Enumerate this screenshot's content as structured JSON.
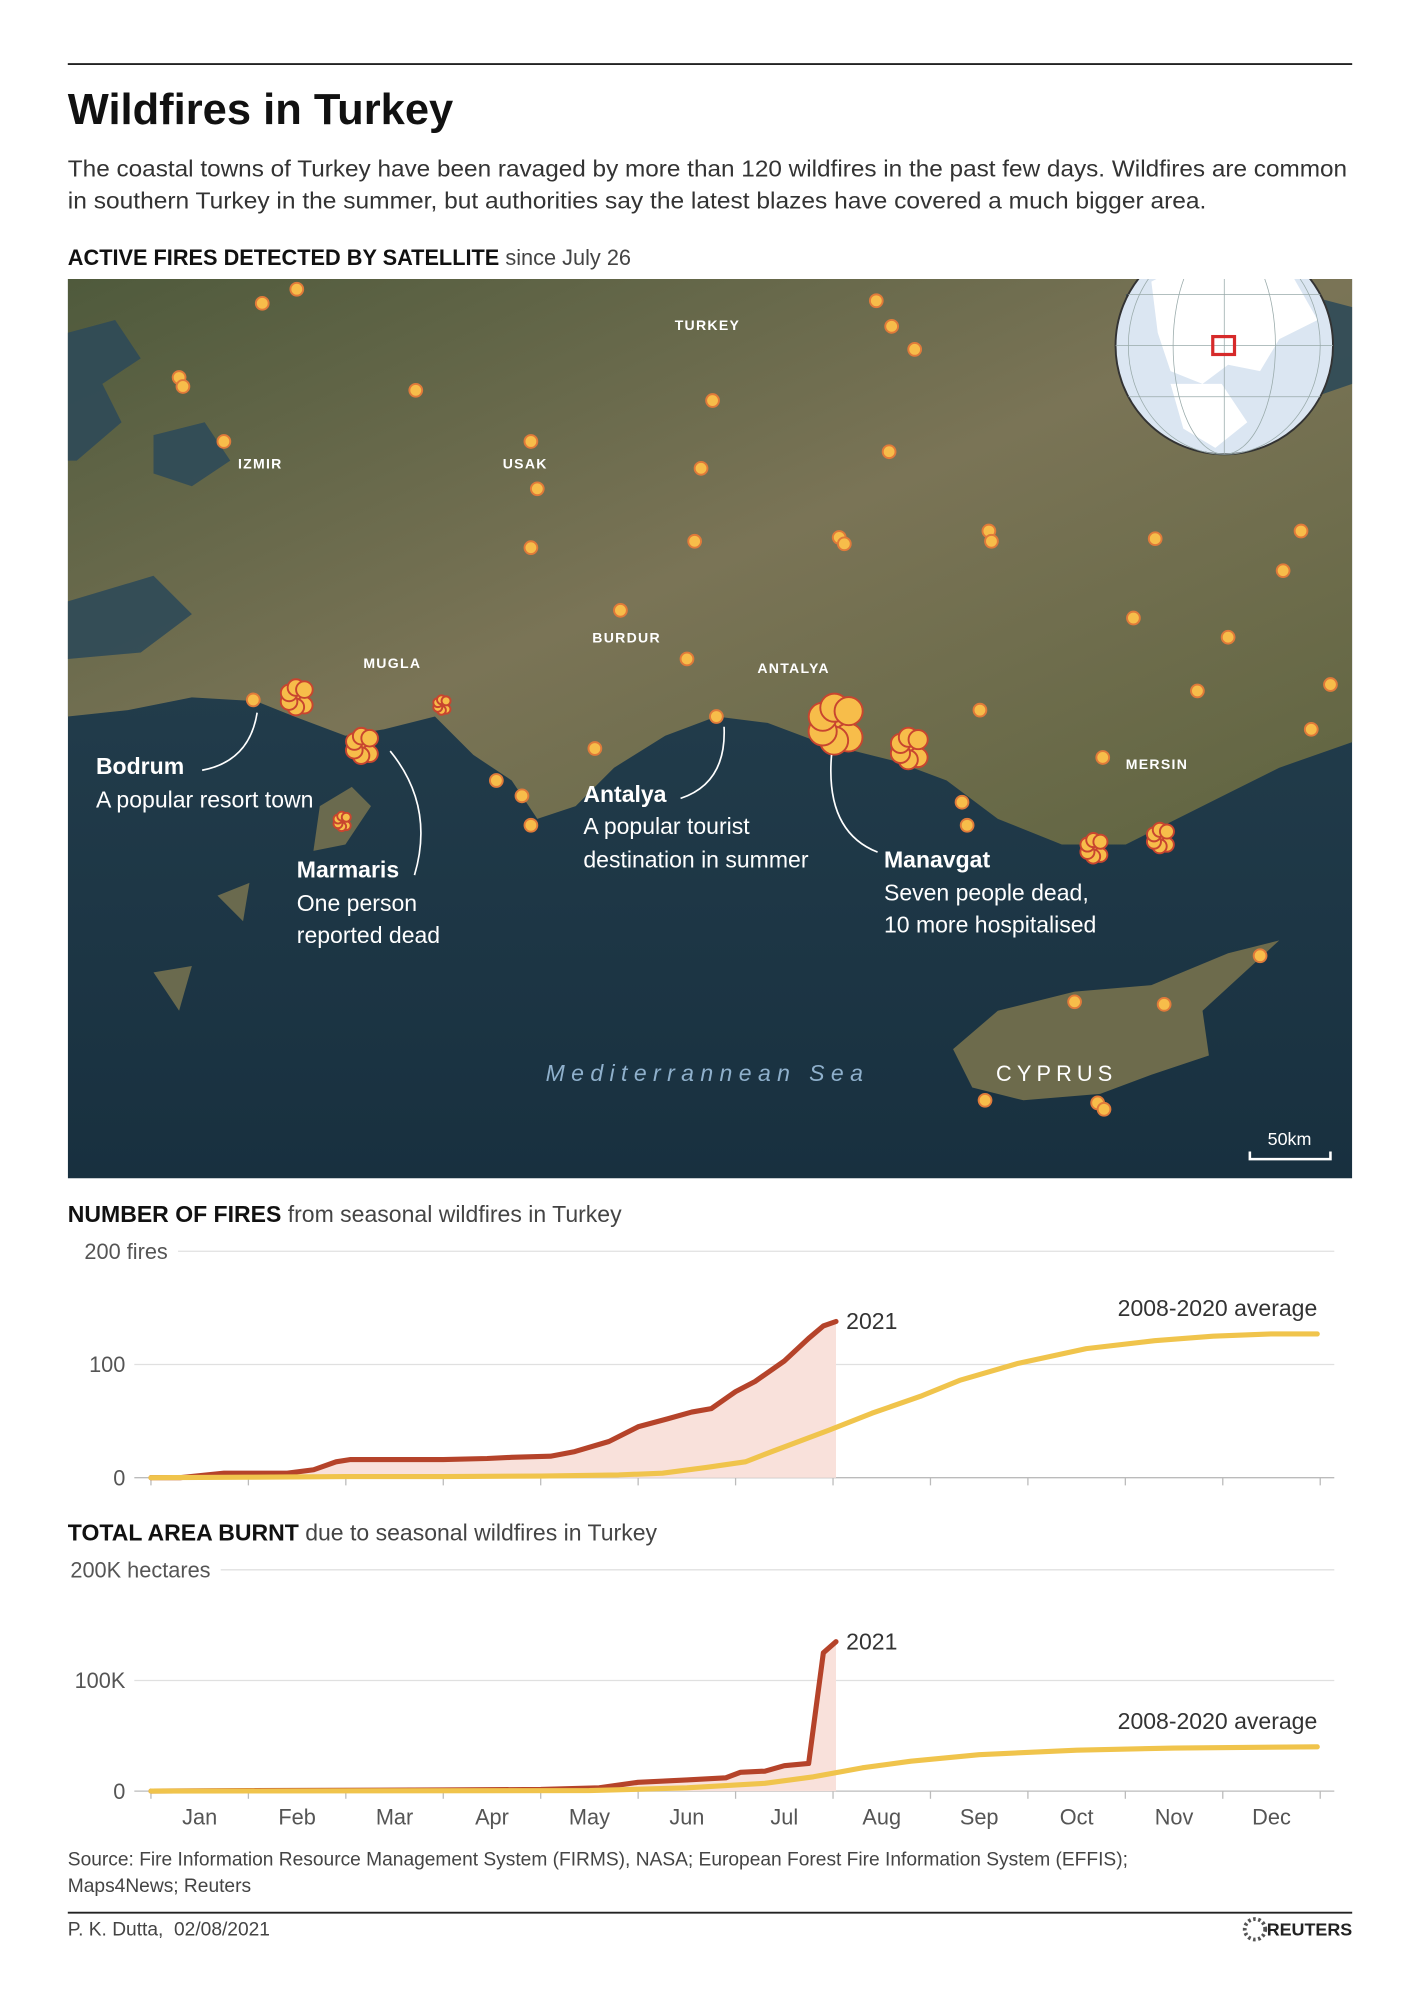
{
  "header": {
    "title": "Wildfires in Turkey",
    "description": [
      "The coastal towns of Turkey have been ravaged by more than 120 wildfires in the past few days. Wildfires are common",
      "in southern Turkey in the summer, but authorities say the latest blazes have covered a much bigger area."
    ]
  },
  "map": {
    "heading": "ACTIVE FIRES DETECTED BY SATELLITE",
    "subheading": "since July 26",
    "labels": [
      "TURKEY",
      "IZMIR",
      "USAK",
      "MUGLA",
      "BURDUR",
      "ANTALYA",
      "MERSIN",
      "Mediterrannean Sea",
      "CYPRUS"
    ],
    "annotations": [
      {
        "title": "Bodrum",
        "text": [
          "A popular resort town"
        ]
      },
      {
        "title": "Marmaris",
        "text": [
          "One person",
          "reported dead"
        ]
      },
      {
        "title": "Antalya",
        "text": [
          "A popular tourist",
          "destination in summer"
        ]
      },
      {
        "title": "Manavgat",
        "text": [
          "Seven people dead,",
          "10 more hospitalised"
        ]
      }
    ],
    "scale": "50km"
  },
  "chart_data": [
    {
      "type": "line",
      "title": "NUMBER OF FIRES",
      "subtitle": "from seasonal wildfires in Turkey",
      "xlim": [
        0,
        12
      ],
      "xticks": [
        0,
        1,
        2,
        3,
        4,
        5,
        6,
        7,
        8,
        9,
        10,
        11,
        12
      ],
      "ylim": [
        0,
        200
      ],
      "yticks": [
        0,
        100,
        {
          "value": 200,
          "label": "200 fires"
        }
      ],
      "grid": true,
      "series": [
        {
          "name": "2021",
          "color": "#b5432a",
          "fill": "#f9e1db",
          "x": [
            0,
            0.3,
            0.75,
            1.4,
            1.67,
            1.9,
            2.05,
            3.0,
            3.45,
            3.7,
            4.1,
            4.35,
            4.7,
            5.0,
            5.3,
            5.55,
            5.75,
            6.0,
            6.2,
            6.5,
            6.75,
            6.9,
            7.03
          ],
          "values": [
            0,
            0,
            4,
            4,
            7,
            14,
            16,
            16,
            17,
            18,
            19,
            23,
            32,
            45,
            52,
            58,
            61,
            76,
            85,
            103,
            123,
            134,
            138
          ]
        },
        {
          "name": "2008-2020 average",
          "color": "#f0c44c",
          "x": [
            0,
            1,
            2,
            3,
            4,
            4.8,
            5.25,
            5.7,
            6.1,
            6.4,
            6.96,
            7.4,
            7.9,
            8.3,
            8.9,
            9.6,
            10.3,
            10.9,
            11.5,
            11.97
          ],
          "values": [
            0,
            0.5,
            1,
            1,
            1.5,
            2.5,
            4,
            9,
            14,
            24,
            42,
            57,
            72,
            86,
            101,
            114,
            121,
            125,
            127,
            127
          ]
        }
      ]
    },
    {
      "type": "line",
      "title": "TOTAL AREA BURNT",
      "subtitle": "due to seasonal wildfires in Turkey",
      "categories": [
        "Jan",
        "Feb",
        "Mar",
        "Apr",
        "May",
        "Jun",
        "Jul",
        "Aug",
        "Sep",
        "Oct",
        "Nov",
        "Dec"
      ],
      "xlim": [
        0,
        12
      ],
      "xticks": [
        0,
        1,
        2,
        3,
        4,
        5,
        6,
        7,
        8,
        9,
        10,
        11,
        12
      ],
      "ylim": [
        0,
        200000
      ],
      "yticks": [
        0,
        {
          "value": 100000,
          "label": "100K"
        },
        {
          "value": 200000,
          "label": "200K hectares"
        }
      ],
      "grid": true,
      "series": [
        {
          "name": "2021",
          "color": "#b5432a",
          "fill": "#f9e1db",
          "x": [
            0,
            1,
            3,
            4,
            4.6,
            5.0,
            5.5,
            5.9,
            6.05,
            6.3,
            6.5,
            6.75,
            6.9,
            7.03
          ],
          "values": [
            0,
            500,
            1000,
            1500,
            3000,
            8000,
            10000,
            12000,
            17000,
            18000,
            23000,
            25000,
            125000,
            135000
          ]
        },
        {
          "name": "2008-2020 average",
          "color": "#f0c44c",
          "x": [
            0,
            4.5,
            5.5,
            6.3,
            6.8,
            7.3,
            7.8,
            8.5,
            9.5,
            10.5,
            11.97
          ],
          "values": [
            0,
            500,
            3000,
            7000,
            13000,
            21000,
            27000,
            33000,
            37000,
            39000,
            40000
          ]
        }
      ]
    }
  ],
  "footer": {
    "source": [
      "Source: Fire Information Resource Management System (FIRMS), NASA; European Forest Fire Information System (EFFIS);",
      "Maps4News; Reuters"
    ],
    "byline": "P. K. Dutta,  02/08/2021",
    "brand": "REUTERS"
  }
}
